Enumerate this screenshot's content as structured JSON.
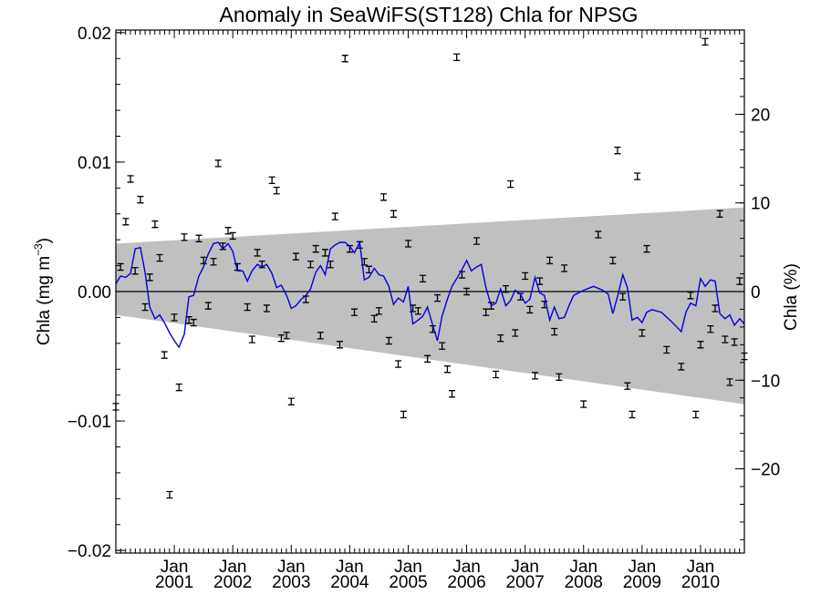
{
  "chart_data": {
    "type": "line",
    "title": "Anomaly in SeaWiFS(ST128) Chla for NPSG",
    "ylabel_left": "Chla (mg m",
    "ylabel_left_sup": "−3",
    "ylabel_left_close": ")",
    "ylabel_right": "Chla (%)",
    "x_range": [
      2000.0,
      2010.75
    ],
    "ylim_left": [
      -0.0202,
      0.0202
    ],
    "ylim_right": [
      -29.5,
      29.5
    ],
    "x_ticks": [
      {
        "x": 2001.0,
        "month": "Jan",
        "year": "2001"
      },
      {
        "x": 2002.0,
        "month": "Jan",
        "year": "2002"
      },
      {
        "x": 2003.0,
        "month": "Jan",
        "year": "2003"
      },
      {
        "x": 2004.0,
        "month": "Jan",
        "year": "2004"
      },
      {
        "x": 2005.0,
        "month": "Jan",
        "year": "2005"
      },
      {
        "x": 2006.0,
        "month": "Jan",
        "year": "2006"
      },
      {
        "x": 2007.0,
        "month": "Jan",
        "year": "2007"
      },
      {
        "x": 2008.0,
        "month": "Jan",
        "year": "2008"
      },
      {
        "x": 2009.0,
        "month": "Jan",
        "year": "2009"
      },
      {
        "x": 2010.0,
        "month": "Jan",
        "year": "2010"
      }
    ],
    "y_ticks_left": [
      {
        "v": 0.02,
        "label": "0.02"
      },
      {
        "v": 0.01,
        "label": "0.01"
      },
      {
        "v": 0.0,
        "label": "0.00"
      },
      {
        "v": -0.01,
        "label": "−0.01"
      },
      {
        "v": -0.02,
        "label": "−0.02"
      }
    ],
    "y_ticks_right": [
      {
        "v": 20,
        "label": "20"
      },
      {
        "v": 10,
        "label": "10"
      },
      {
        "v": 0,
        "label": "0"
      },
      {
        "v": -10,
        "label": "−10"
      },
      {
        "v": -20,
        "label": "−20"
      }
    ],
    "zero_line": 0.0,
    "uncertainty_band": {
      "color": "#c0c0c0",
      "upper": [
        [
          2000.0,
          0.0037
        ],
        [
          2010.75,
          0.0065
        ]
      ],
      "lower": [
        [
          2000.0,
          -0.0018
        ],
        [
          2010.75,
          -0.0087
        ]
      ]
    },
    "series": [
      {
        "style": "errorbar",
        "color": "#000000",
        "error": 0.00025,
        "points": [
          [
            2000.0,
            -0.0089
          ],
          [
            2000.08,
            0.0019
          ],
          [
            2000.17,
            0.0054
          ],
          [
            2000.25,
            0.0087
          ],
          [
            2000.33,
            0.0016
          ],
          [
            2000.42,
            0.0071
          ],
          [
            2000.5,
            -0.0012
          ],
          [
            2000.58,
            0.0011
          ],
          [
            2000.67,
            0.0052
          ],
          [
            2000.75,
            0.0026
          ],
          [
            2000.83,
            -0.0049
          ],
          [
            2000.92,
            -0.0157
          ],
          [
            2001.0,
            -0.002
          ],
          [
            2001.08,
            -0.0074
          ],
          [
            2001.17,
            0.0042
          ],
          [
            2001.25,
            -0.0022
          ],
          [
            2001.33,
            -0.0024
          ],
          [
            2001.42,
            0.0041
          ],
          [
            2001.5,
            0.0024
          ],
          [
            2001.58,
            -0.0011
          ],
          [
            2001.67,
            0.0023
          ],
          [
            2001.75,
            0.0099
          ],
          [
            2001.83,
            0.0035
          ],
          [
            2001.92,
            0.0047
          ],
          [
            2002.0,
            0.0043
          ],
          [
            2002.08,
            0.0019
          ],
          [
            2002.25,
            -0.0012
          ],
          [
            2002.33,
            -0.0037
          ],
          [
            2002.42,
            0.003
          ],
          [
            2002.5,
            0.0021
          ],
          [
            2002.58,
            -0.0013
          ],
          [
            2002.67,
            0.0086
          ],
          [
            2002.75,
            0.0078
          ],
          [
            2002.83,
            -0.0036
          ],
          [
            2002.92,
            -0.0034
          ],
          [
            2003.0,
            -0.0085
          ],
          [
            2003.08,
            0.0027
          ],
          [
            2003.25,
            -0.0006
          ],
          [
            2003.33,
            0.0021
          ],
          [
            2003.42,
            0.0033
          ],
          [
            2003.5,
            -0.0034
          ],
          [
            2003.58,
            0.003
          ],
          [
            2003.67,
            0.0021
          ],
          [
            2003.75,
            0.0058
          ],
          [
            2003.83,
            -0.0041
          ],
          [
            2003.92,
            0.018
          ],
          [
            2004.0,
            0.0033
          ],
          [
            2004.08,
            -0.0016
          ],
          [
            2004.17,
            0.0036
          ],
          [
            2004.25,
            0.0023
          ],
          [
            2004.33,
            0.0017
          ],
          [
            2004.42,
            -0.0021
          ],
          [
            2004.5,
            -0.0015
          ],
          [
            2004.58,
            0.0073
          ],
          [
            2004.67,
            -0.0038
          ],
          [
            2004.75,
            0.006
          ],
          [
            2004.83,
            -0.0056
          ],
          [
            2004.92,
            -0.0095
          ],
          [
            2005.0,
            0.0037
          ],
          [
            2005.08,
            -0.0013
          ],
          [
            2005.17,
            -0.0015
          ],
          [
            2005.25,
            0.001
          ],
          [
            2005.33,
            -0.0052
          ],
          [
            2005.42,
            -0.0029
          ],
          [
            2005.5,
            -0.0005
          ],
          [
            2005.58,
            -0.0042
          ],
          [
            2005.67,
            -0.006
          ],
          [
            2005.75,
            -0.0079
          ],
          [
            2005.83,
            0.0181
          ],
          [
            2005.92,
            0.0013
          ],
          [
            2006.0,
            0.0
          ],
          [
            2006.17,
            0.0039
          ],
          [
            2006.33,
            -0.0016
          ],
          [
            2006.42,
            -0.0011
          ],
          [
            2006.5,
            -0.0064
          ],
          [
            2006.58,
            -0.0036
          ],
          [
            2006.67,
            0.0002
          ],
          [
            2006.75,
            0.0083
          ],
          [
            2006.83,
            -0.0032
          ],
          [
            2006.92,
            -0.0004
          ],
          [
            2007.0,
            0.0012
          ],
          [
            2007.08,
            -0.0014
          ],
          [
            2007.17,
            -0.0065
          ],
          [
            2007.25,
            0.0008
          ],
          [
            2007.33,
            -0.001
          ],
          [
            2007.42,
            0.0024
          ],
          [
            2007.5,
            -0.0031
          ],
          [
            2007.58,
            -0.0066
          ],
          [
            2007.67,
            0.0018
          ],
          [
            2008.0,
            -0.0087
          ],
          [
            2008.25,
            0.0044
          ],
          [
            2008.5,
            0.0024
          ],
          [
            2008.58,
            0.0109
          ],
          [
            2008.67,
            -0.0004
          ],
          [
            2008.75,
            -0.0073
          ],
          [
            2008.83,
            -0.0095
          ],
          [
            2008.92,
            0.0089
          ],
          [
            2009.0,
            -0.0032
          ],
          [
            2009.08,
            0.0033
          ],
          [
            2009.42,
            -0.0045
          ],
          [
            2009.67,
            -0.0058
          ],
          [
            2009.83,
            -0.0003
          ],
          [
            2009.92,
            -0.0095
          ],
          [
            2010.0,
            -0.0041
          ],
          [
            2010.08,
            0.0193
          ],
          [
            2010.17,
            -0.0029
          ],
          [
            2010.25,
            -0.0013
          ],
          [
            2010.33,
            0.006
          ],
          [
            2010.42,
            -0.0037
          ],
          [
            2010.5,
            -0.007
          ],
          [
            2010.58,
            -0.0039
          ],
          [
            2010.67,
            0.0008
          ],
          [
            2010.75,
            -0.005
          ]
        ]
      },
      {
        "style": "line",
        "color": "#0000dd",
        "points": [
          [
            2000.0,
            0.0006
          ],
          [
            2000.08,
            0.0012
          ],
          [
            2000.17,
            0.0011
          ],
          [
            2000.25,
            0.0014
          ],
          [
            2000.33,
            0.0033
          ],
          [
            2000.42,
            0.0034
          ],
          [
            2000.5,
            0.0015
          ],
          [
            2000.58,
            -0.0012
          ],
          [
            2000.67,
            -0.0021
          ],
          [
            2000.75,
            -0.0018
          ],
          [
            2000.83,
            -0.0024
          ],
          [
            2000.92,
            -0.0032
          ],
          [
            2001.0,
            -0.0038
          ],
          [
            2001.08,
            -0.0043
          ],
          [
            2001.17,
            -0.0033
          ],
          [
            2001.25,
            -0.0004
          ],
          [
            2001.33,
            -0.0003
          ],
          [
            2001.42,
            0.0012
          ],
          [
            2001.5,
            0.0019
          ],
          [
            2001.58,
            0.0029
          ],
          [
            2001.67,
            0.0037
          ],
          [
            2001.75,
            0.0038
          ],
          [
            2001.83,
            0.0033
          ],
          [
            2001.92,
            0.0037
          ],
          [
            2002.0,
            0.0031
          ],
          [
            2002.08,
            0.0016
          ],
          [
            2002.17,
            0.0016
          ],
          [
            2002.25,
            0.0008
          ],
          [
            2002.33,
            0.0016
          ],
          [
            2002.42,
            0.0021
          ],
          [
            2002.5,
            0.0019
          ],
          [
            2002.58,
            0.0021
          ],
          [
            2002.67,
            0.0014
          ],
          [
            2002.75,
            0.0003
          ],
          [
            2002.83,
            0.0005
          ],
          [
            2002.92,
            -0.0003
          ],
          [
            2003.0,
            -0.0013
          ],
          [
            2003.08,
            -0.0011
          ],
          [
            2003.17,
            -0.0006
          ],
          [
            2003.25,
            -0.0003
          ],
          [
            2003.33,
            0.0002
          ],
          [
            2003.42,
            0.0015
          ],
          [
            2003.5,
            0.002
          ],
          [
            2003.58,
            0.0013
          ],
          [
            2003.67,
            0.0033
          ],
          [
            2003.75,
            0.0036
          ],
          [
            2003.83,
            0.0038
          ],
          [
            2003.92,
            0.0038
          ],
          [
            2004.0,
            0.0035
          ],
          [
            2004.08,
            0.003
          ],
          [
            2004.17,
            0.0038
          ],
          [
            2004.25,
            0.0009
          ],
          [
            2004.33,
            0.0011
          ],
          [
            2004.42,
            0.0018
          ],
          [
            2004.5,
            0.0013
          ],
          [
            2004.58,
            0.0012
          ],
          [
            2004.67,
            0.0004
          ],
          [
            2004.75,
            -0.001
          ],
          [
            2004.83,
            -0.0005
          ],
          [
            2004.92,
            -0.0008
          ],
          [
            2005.0,
            0.0004
          ],
          [
            2005.08,
            -0.0025
          ],
          [
            2005.17,
            -0.0022
          ],
          [
            2005.25,
            -0.0019
          ],
          [
            2005.33,
            -0.0012
          ],
          [
            2005.42,
            -0.0026
          ],
          [
            2005.5,
            -0.0038
          ],
          [
            2005.58,
            -0.0019
          ],
          [
            2005.67,
            -0.0006
          ],
          [
            2005.75,
            0.0004
          ],
          [
            2005.83,
            0.001
          ],
          [
            2005.92,
            0.0017
          ],
          [
            2006.0,
            0.0024
          ],
          [
            2006.08,
            0.0016
          ],
          [
            2006.17,
            0.0019
          ],
          [
            2006.25,
            0.0021
          ],
          [
            2006.33,
            0.0003
          ],
          [
            2006.42,
            -0.0011
          ],
          [
            2006.5,
            -0.0009
          ],
          [
            2006.58,
            0.0002
          ],
          [
            2006.67,
            -0.0011
          ],
          [
            2006.75,
            -0.0007
          ],
          [
            2006.83,
            0.0001
          ],
          [
            2006.92,
            -0.0002
          ],
          [
            2007.0,
            -0.0009
          ],
          [
            2007.08,
            -0.0006
          ],
          [
            2007.17,
            0.0011
          ],
          [
            2007.25,
            -0.0001
          ],
          [
            2007.33,
            -0.0003
          ],
          [
            2007.42,
            -0.0022
          ],
          [
            2007.5,
            -0.0012
          ],
          [
            2007.58,
            -0.0021
          ],
          [
            2007.67,
            -0.002
          ],
          [
            2007.75,
            -0.0011
          ],
          [
            2007.83,
            -0.0003
          ],
          [
            2008.0,
            0.0001
          ],
          [
            2008.17,
            0.0004
          ],
          [
            2008.33,
            0.0001
          ],
          [
            2008.42,
            -0.0002
          ],
          [
            2008.5,
            -0.0017
          ],
          [
            2008.58,
            -0.0004
          ],
          [
            2008.67,
            0.0013
          ],
          [
            2008.75,
            0.0003
          ],
          [
            2008.83,
            -0.0022
          ],
          [
            2008.92,
            -0.002
          ],
          [
            2009.0,
            -0.0024
          ],
          [
            2009.08,
            -0.0016
          ],
          [
            2009.17,
            -0.0014
          ],
          [
            2009.33,
            -0.0016
          ],
          [
            2009.5,
            -0.0023
          ],
          [
            2009.67,
            -0.0031
          ],
          [
            2009.75,
            -0.0016
          ],
          [
            2009.83,
            -0.0009
          ],
          [
            2009.92,
            -0.0011
          ],
          [
            2010.0,
            0.001
          ],
          [
            2010.08,
            0.0004
          ],
          [
            2010.17,
            0.0009
          ],
          [
            2010.25,
            0.0008
          ],
          [
            2010.33,
            -0.0017
          ],
          [
            2010.42,
            -0.0021
          ],
          [
            2010.5,
            -0.0018
          ],
          [
            2010.58,
            -0.0026
          ],
          [
            2010.67,
            -0.0021
          ],
          [
            2010.75,
            -0.0025
          ]
        ]
      }
    ]
  }
}
